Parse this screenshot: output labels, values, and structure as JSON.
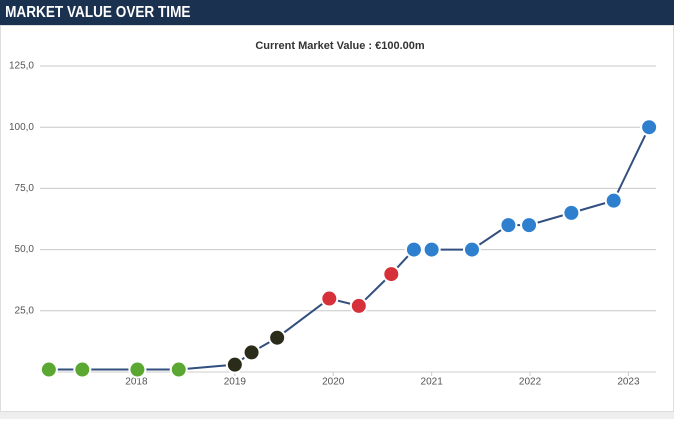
{
  "header": {
    "title": "MARKET VALUE OVER TIME"
  },
  "chart_data": {
    "type": "line",
    "title": "Current Market Value : €100.00m",
    "x": [
      2017.11,
      2017.45,
      2018.01,
      2018.43,
      2019.0,
      2019.17,
      2019.43,
      2019.96,
      2020.26,
      2020.59,
      2020.82,
      2021.0,
      2021.41,
      2021.78,
      2021.99,
      2022.42,
      2022.85,
      2023.21
    ],
    "values": [
      1,
      1,
      1,
      1,
      3,
      8,
      14,
      30,
      27,
      40,
      50,
      50,
      50,
      60,
      60,
      65,
      70,
      100
    ],
    "marker_colors": [
      "#5aa832",
      "#5aa832",
      "#5aa832",
      "#5aa832",
      "#2b2b1a",
      "#2b2b1a",
      "#2b2b1a",
      "#d6303a",
      "#d6303a",
      "#d6303a",
      "#2f7fcf",
      "#2f7fcf",
      "#2f7fcf",
      "#2f7fcf",
      "#2f7fcf",
      "#2f7fcf",
      "#2f7fcf",
      "#2f7fcf"
    ],
    "color": "#324f7e",
    "xlim": [
      2017.02,
      2023.28
    ],
    "xticks": [
      2018,
      2019,
      2020,
      2021,
      2022,
      2023
    ],
    "ylim": [
      0,
      125
    ],
    "yticks": [
      {
        "value": 25,
        "label": "25,0"
      },
      {
        "value": 50,
        "label": "50,0"
      },
      {
        "value": 75,
        "label": "75,0"
      },
      {
        "value": 100,
        "label": "100,0"
      },
      {
        "value": 125,
        "label": "125,0"
      }
    ],
    "grid": true
  }
}
